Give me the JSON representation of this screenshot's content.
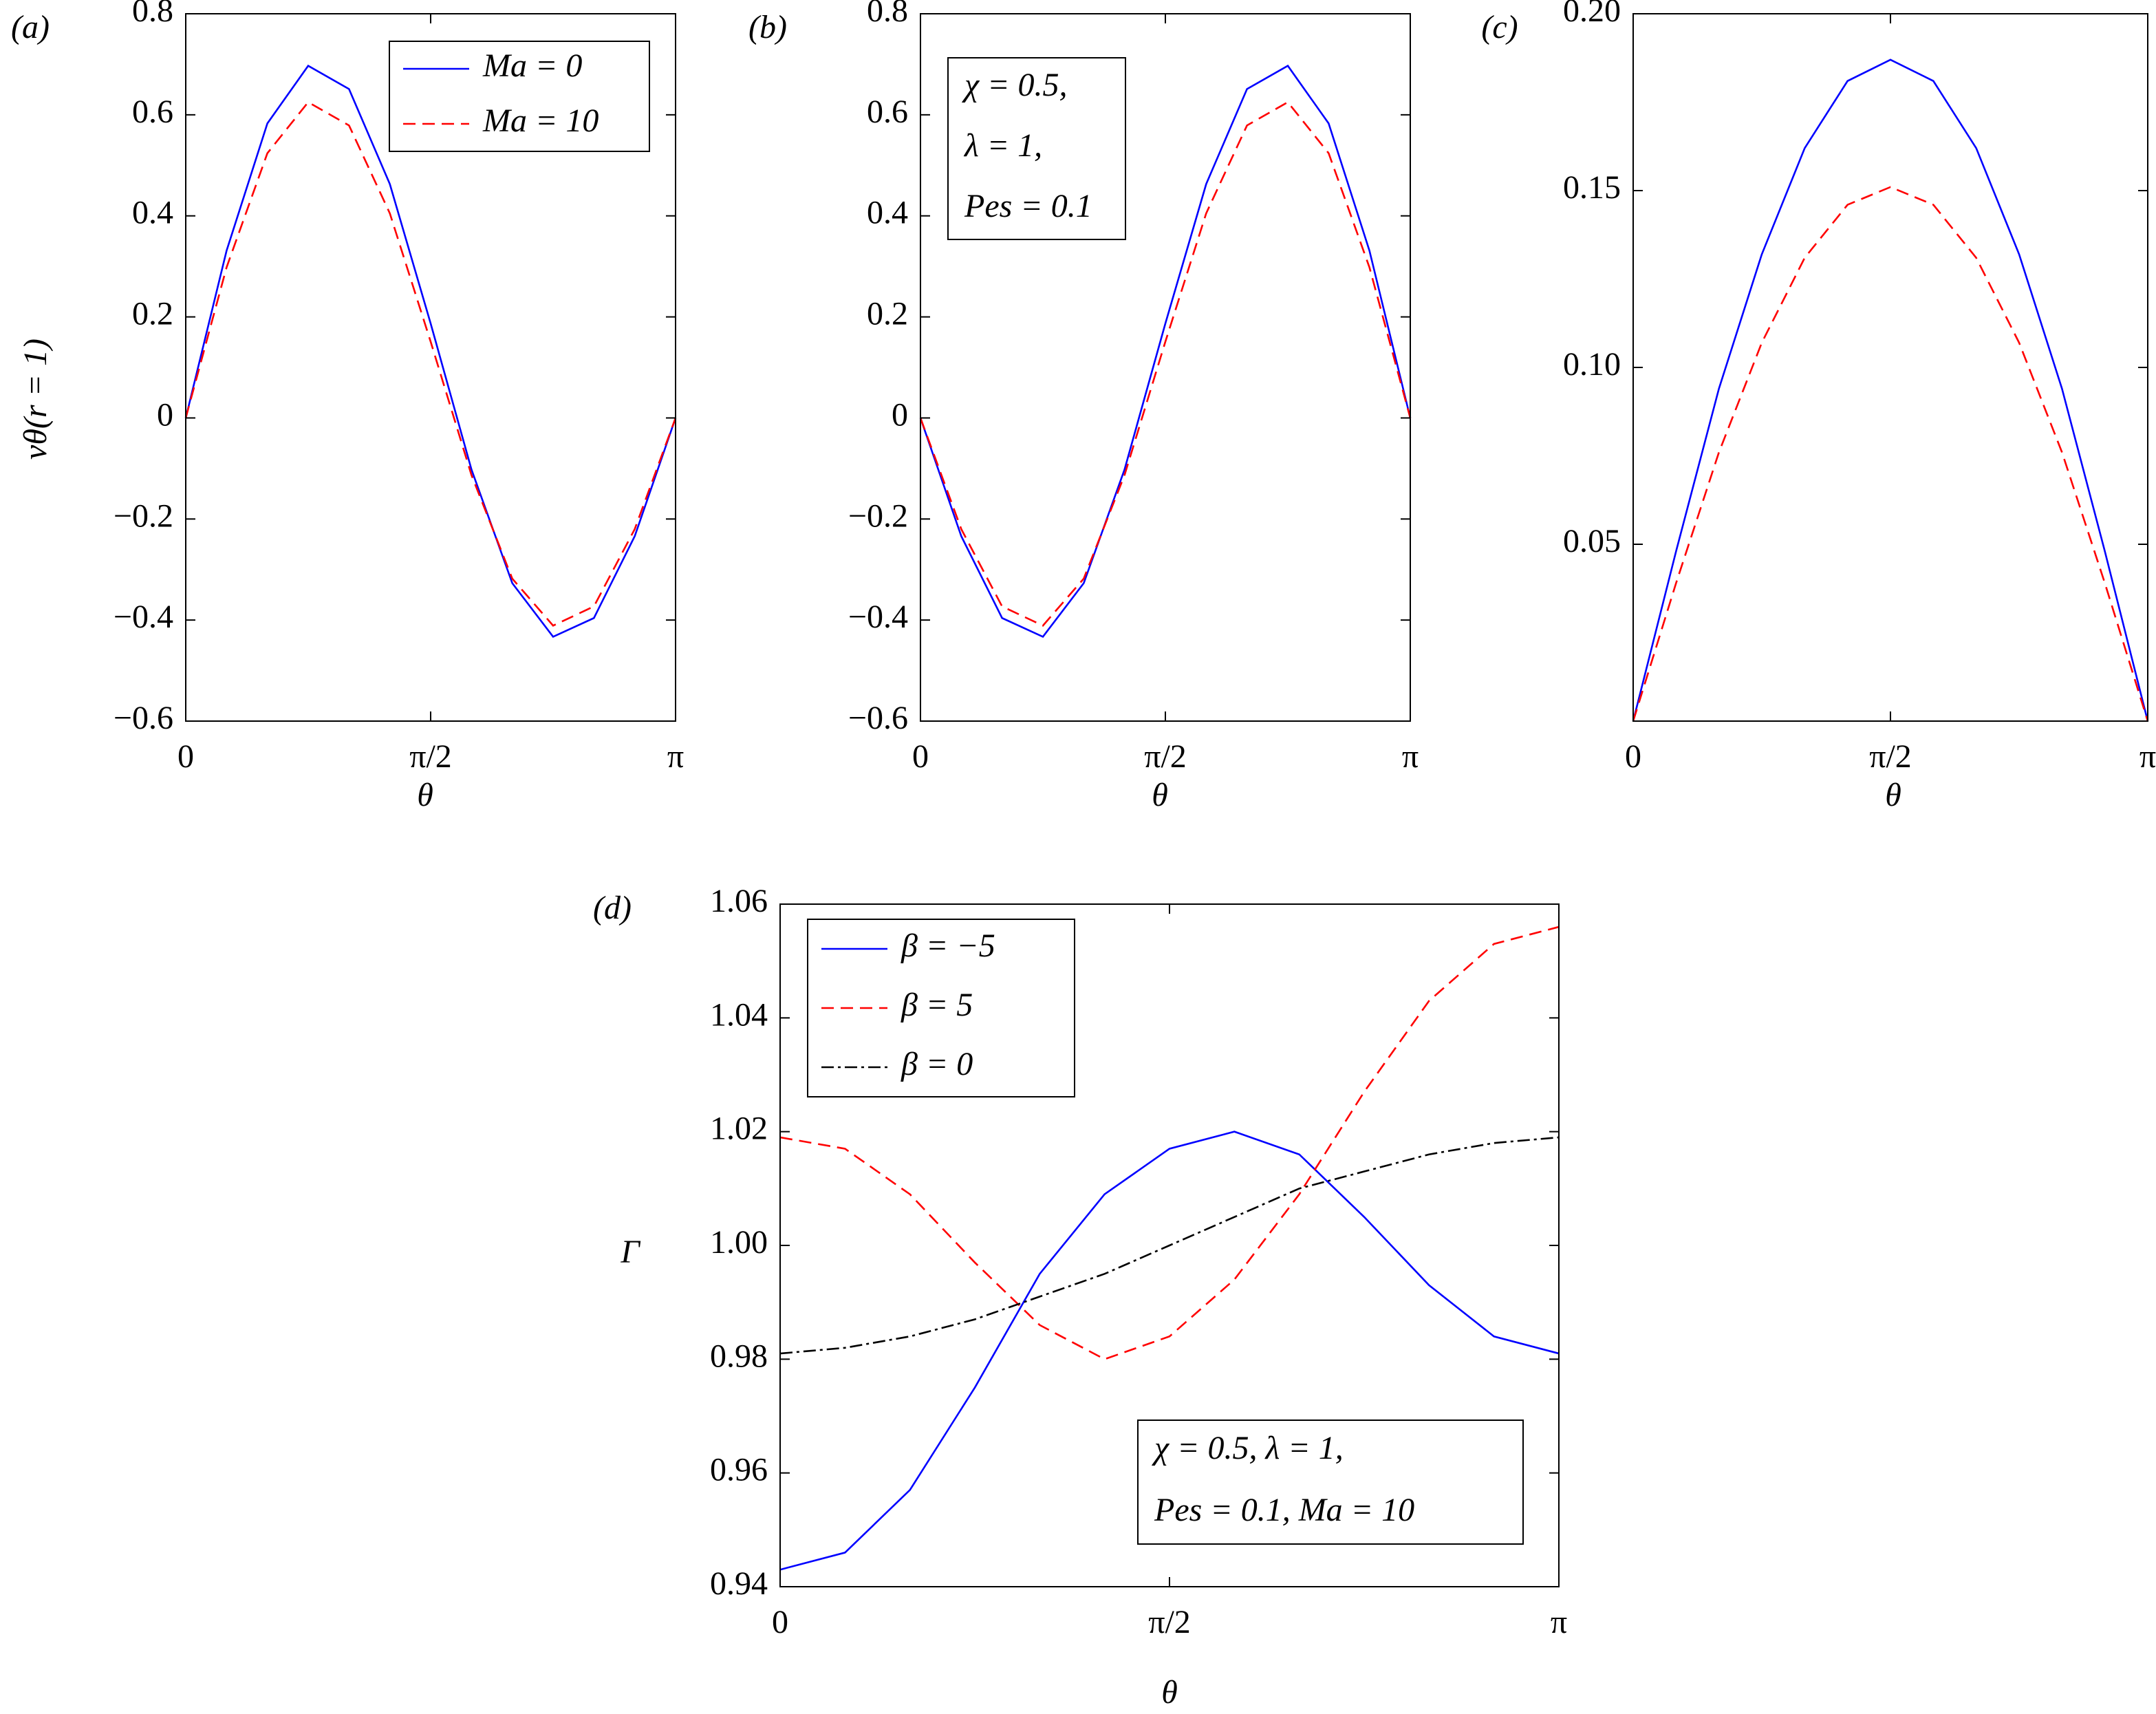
{
  "chart_data": [
    {
      "type": "line",
      "panel": "(a)",
      "ylabel": "vθ(r = 1)",
      "xlabel": "θ",
      "x": [
        0,
        0.2618,
        0.5236,
        0.7854,
        1.0472,
        1.309,
        1.5708,
        1.8326,
        2.0944,
        2.3562,
        2.618,
        2.8798,
        3.1416
      ],
      "xlim": [
        0,
        3.1416
      ],
      "xticks": [
        0,
        {
          "value": 1.5708,
          "label": "π/2"
        },
        {
          "value": 3.1416,
          "label": "π"
        }
      ],
      "ylim": [
        -0.6,
        0.8
      ],
      "yticks": [
        {
          "value": -0.6,
          "label": "−0.6"
        },
        {
          "value": -0.4,
          "label": "−0.4"
        },
        {
          "value": -0.2,
          "label": "−0.2"
        },
        0,
        0.2,
        0.4,
        0.6,
        0.8
      ],
      "legend": "upper right",
      "series": [
        {
          "name": "Ma = 0",
          "color": "#0000ff",
          "linestyle": "solid",
          "values": [
            0,
            0.331,
            0.583,
            0.697,
            0.651,
            0.463,
            0.187,
            -0.102,
            -0.327,
            -0.433,
            -0.396,
            -0.234,
            0
          ]
        },
        {
          "name": "Ma = 10",
          "color": "#ff0000",
          "linestyle": "dashed",
          "values": [
            0,
            0.298,
            0.524,
            0.625,
            0.579,
            0.405,
            0.151,
            -0.113,
            -0.318,
            -0.411,
            -0.373,
            -0.22,
            0
          ]
        }
      ]
    },
    {
      "type": "line",
      "panel": "(b)",
      "xlabel": "θ",
      "x": [
        0,
        0.2618,
        0.5236,
        0.7854,
        1.0472,
        1.309,
        1.5708,
        1.8326,
        2.0944,
        2.3562,
        2.618,
        2.8798,
        3.1416
      ],
      "xlim": [
        0,
        3.1416
      ],
      "xticks": [
        0,
        {
          "value": 1.5708,
          "label": "π/2"
        },
        {
          "value": 3.1416,
          "label": "π"
        }
      ],
      "ylim": [
        -0.6,
        0.8
      ],
      "yticks": [
        {
          "value": -0.6,
          "label": "−0.6"
        },
        {
          "value": -0.4,
          "label": "−0.4"
        },
        {
          "value": -0.2,
          "label": "−0.2"
        },
        0,
        0.2,
        0.4,
        0.6,
        0.8
      ],
      "annotation": [
        "χ = 0.5,",
        "λ = 1,",
        "Pes = 0.1"
      ],
      "series": [
        {
          "color": "#0000ff",
          "linestyle": "solid",
          "values": [
            0,
            -0.234,
            -0.396,
            -0.433,
            -0.327,
            -0.102,
            0.187,
            0.463,
            0.651,
            0.697,
            0.583,
            0.331,
            0
          ]
        },
        {
          "color": "#ff0000",
          "linestyle": "dashed",
          "values": [
            0,
            -0.22,
            -0.373,
            -0.411,
            -0.318,
            -0.113,
            0.151,
            0.405,
            0.579,
            0.625,
            0.524,
            0.298,
            0
          ]
        }
      ]
    },
    {
      "type": "line",
      "panel": "(c)",
      "xlabel": "θ",
      "x": [
        0,
        0.2618,
        0.5236,
        0.7854,
        1.0472,
        1.309,
        1.5708,
        1.8326,
        2.0944,
        2.3562,
        2.618,
        2.8798,
        3.1416
      ],
      "xlim": [
        0,
        3.1416
      ],
      "xticks": [
        0,
        {
          "value": 1.5708,
          "label": "π/2"
        },
        {
          "value": 3.1416,
          "label": "π"
        }
      ],
      "ylim": [
        0,
        0.2
      ],
      "yticks": [
        0.05,
        {
          "value": 0.1,
          "label": "0.10"
        },
        0.15,
        {
          "value": 0.2,
          "label": "0.20"
        }
      ],
      "series": [
        {
          "color": "#0000ff",
          "linestyle": "solid",
          "values": [
            0,
            0.048,
            0.094,
            0.132,
            0.162,
            0.181,
            0.187,
            0.181,
            0.162,
            0.132,
            0.094,
            0.048,
            0
          ]
        },
        {
          "color": "#ff0000",
          "linestyle": "dashed",
          "values": [
            0,
            0.039,
            0.076,
            0.107,
            0.131,
            0.146,
            0.151,
            0.146,
            0.131,
            0.107,
            0.076,
            0.039,
            0
          ]
        }
      ]
    },
    {
      "type": "line",
      "panel": "(d)",
      "ylabel": "Γ",
      "xlabel": "θ",
      "x": [
        0,
        0.2618,
        0.5236,
        0.7854,
        1.0472,
        1.309,
        1.5708,
        1.8326,
        2.0944,
        2.3562,
        2.618,
        2.8798,
        3.1416
      ],
      "xlim": [
        0,
        3.1416
      ],
      "xticks": [
        0,
        {
          "value": 1.5708,
          "label": "π/2"
        },
        {
          "value": 3.1416,
          "label": "π"
        }
      ],
      "ylim": [
        0.94,
        1.06
      ],
      "yticks": [
        0.94,
        0.96,
        0.98,
        {
          "value": 1.0,
          "label": "1.00"
        },
        1.02,
        1.04,
        1.06
      ],
      "legend": "upper left",
      "annotation": [
        "χ = 0.5, λ = 1,",
        "Pes = 0.1, Ma = 10"
      ],
      "series": [
        {
          "name": "β = −5",
          "color": "#0000ff",
          "linestyle": "solid",
          "values": [
            0.943,
            0.946,
            0.957,
            0.975,
            0.995,
            1.009,
            1.017,
            1.02,
            1.016,
            1.005,
            0.993,
            0.984,
            0.981
          ]
        },
        {
          "name": "β = 5",
          "color": "#ff0000",
          "linestyle": "dashed",
          "values": [
            1.019,
            1.017,
            1.009,
            0.997,
            0.986,
            0.98,
            0.984,
            0.994,
            1.009,
            1.027,
            1.043,
            1.053,
            1.056
          ]
        },
        {
          "name": "β = 0",
          "color": "#000000",
          "linestyle": "dashdot",
          "values": [
            0.981,
            0.982,
            0.984,
            0.987,
            0.991,
            0.995,
            1.0,
            1.005,
            1.01,
            1.013,
            1.016,
            1.018,
            1.019
          ]
        }
      ]
    }
  ]
}
